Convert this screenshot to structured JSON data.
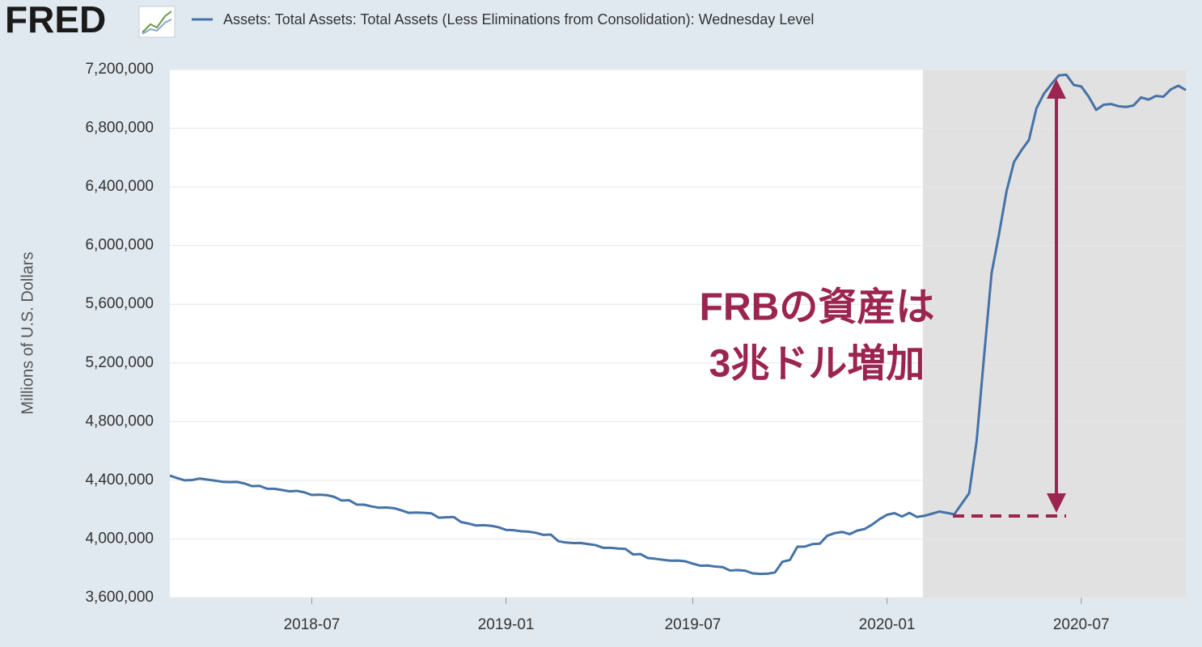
{
  "logo": "FRED",
  "chart_data": {
    "type": "line",
    "ylabel": "Millions of U.S. Dollars",
    "annotations": [
      "FRBの資産は",
      "3兆ドル増加"
    ],
    "grid": true,
    "ylim": [
      3600000,
      7200000
    ],
    "yticks": [
      {
        "value": 3600000,
        "label": "3,600,000"
      },
      {
        "value": 4000000,
        "label": "4,000,000"
      },
      {
        "value": 4400000,
        "label": "4,400,000"
      },
      {
        "value": 4800000,
        "label": "4,800,000"
      },
      {
        "value": 5200000,
        "label": "5,200,000"
      },
      {
        "value": 5600000,
        "label": "5,600,000"
      },
      {
        "value": 6000000,
        "label": "6,000,000"
      },
      {
        "value": 6400000,
        "label": "6,400,000"
      },
      {
        "value": 6800000,
        "label": "6,800,000"
      },
      {
        "value": 7200000,
        "label": "7,200,000"
      }
    ],
    "categories": [
      null,
      null,
      null,
      null,
      null,
      null,
      null,
      null,
      null,
      null,
      null,
      null,
      null,
      null,
      null,
      null,
      null,
      null,
      null,
      "2018-07",
      null,
      null,
      null,
      null,
      null,
      null,
      null,
      null,
      null,
      null,
      null,
      null,
      null,
      null,
      null,
      null,
      null,
      null,
      null,
      null,
      null,
      null,
      null,
      null,
      null,
      "2019-01",
      null,
      null,
      null,
      null,
      null,
      null,
      null,
      null,
      null,
      null,
      null,
      null,
      null,
      null,
      null,
      null,
      null,
      null,
      null,
      null,
      null,
      null,
      null,
      null,
      "2019-07",
      null,
      null,
      null,
      null,
      null,
      null,
      null,
      null,
      null,
      null,
      null,
      null,
      null,
      null,
      null,
      null,
      null,
      null,
      null,
      null,
      null,
      null,
      null,
      null,
      null,
      "2020-01",
      null,
      null,
      null,
      null,
      null,
      null,
      null,
      null,
      null,
      null,
      null,
      null,
      null,
      null,
      null,
      null,
      null,
      null,
      null,
      null,
      null,
      null,
      null,
      null,
      null,
      "2020-07",
      null,
      null,
      null,
      null,
      null,
      null,
      null,
      null,
      null,
      null,
      null,
      null,
      null,
      null
    ],
    "series": [
      {
        "name": "Assets: Total Assets: Total Assets (Less Eliminations from Consolidation): Wednesday Level",
        "color": "#4572a7",
        "values": [
          4432000,
          4415000,
          4400000,
          4402000,
          4412000,
          4405000,
          4398000,
          4390000,
          4388000,
          4389000,
          4378000,
          4360000,
          4362000,
          4343000,
          4342000,
          4334000,
          4325000,
          4328000,
          4318000,
          4300000,
          4302000,
          4299000,
          4287000,
          4262000,
          4264000,
          4235000,
          4234000,
          4222000,
          4213000,
          4215000,
          4210000,
          4195000,
          4178000,
          4180000,
          4178000,
          4175000,
          4145000,
          4148000,
          4150000,
          4115000,
          4105000,
          4092000,
          4094000,
          4090000,
          4080000,
          4062000,
          4060000,
          4053000,
          4050000,
          4042000,
          4028000,
          4030000,
          3985000,
          3976000,
          3972000,
          3973000,
          3965000,
          3958000,
          3940000,
          3940000,
          3935000,
          3932000,
          3895000,
          3897000,
          3870000,
          3865000,
          3858000,
          3852000,
          3853000,
          3848000,
          3832000,
          3818000,
          3819000,
          3812000,
          3808000,
          3785000,
          3788000,
          3784000,
          3766000,
          3762000,
          3763000,
          3772000,
          3845000,
          3857000,
          3947000,
          3948000,
          3965000,
          3968000,
          4022000,
          4040000,
          4048000,
          4033000,
          4057000,
          4068000,
          4098000,
          4135000,
          4165000,
          4176000,
          4153000,
          4178000,
          4150000,
          4158000,
          4172000,
          4187000,
          4178000,
          4168000,
          4240000,
          4312000,
          4670000,
          5250000,
          5812000,
          6080000,
          6370000,
          6570000,
          6650000,
          6720000,
          6935000,
          7035000,
          7100000,
          7160000,
          7165000,
          7095000,
          7085000,
          7015000,
          6925000,
          6960000,
          6965000,
          6950000,
          6945000,
          6955000,
          7010000,
          6995000,
          7020000,
          7015000,
          7065000,
          7090000,
          7060000
        ]
      }
    ]
  }
}
